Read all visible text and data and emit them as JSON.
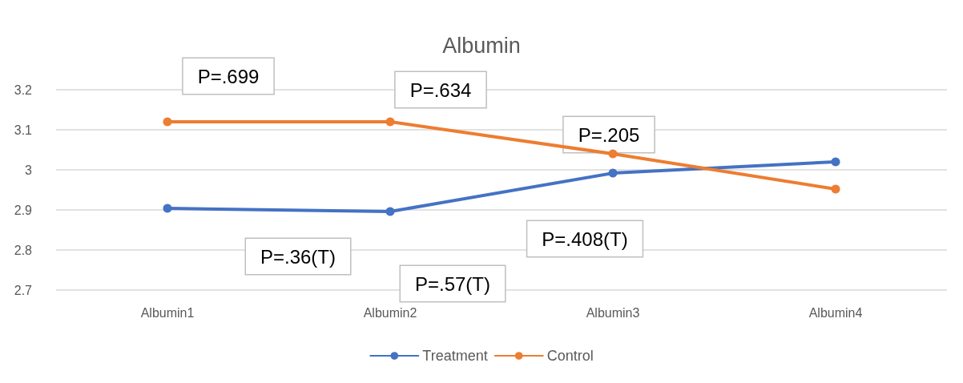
{
  "chart_data": {
    "type": "line",
    "title": "Albumin",
    "categories": [
      "Albumin1",
      "Albumin2",
      "Albumin3",
      "Albumin4"
    ],
    "series": [
      {
        "name": "Treatment",
        "color": "#4472c4",
        "values": [
          2.904,
          2.896,
          2.992,
          3.02
        ]
      },
      {
        "name": "Control",
        "color": "#ed7d31",
        "values": [
          3.12,
          3.12,
          3.04,
          2.952
        ]
      }
    ],
    "ylim": [
      2.7,
      3.2
    ],
    "yticks": [
      2.7,
      2.8,
      2.9,
      3,
      3.1,
      3.2
    ],
    "grid": "y",
    "legend": "bottom",
    "marker": "circle",
    "line_style": "solid",
    "annotations": [
      "P=.699",
      "P=.634",
      "P=.205",
      "P=.36(T)",
      "P=.57(T)",
      "P=.408(T)"
    ]
  }
}
